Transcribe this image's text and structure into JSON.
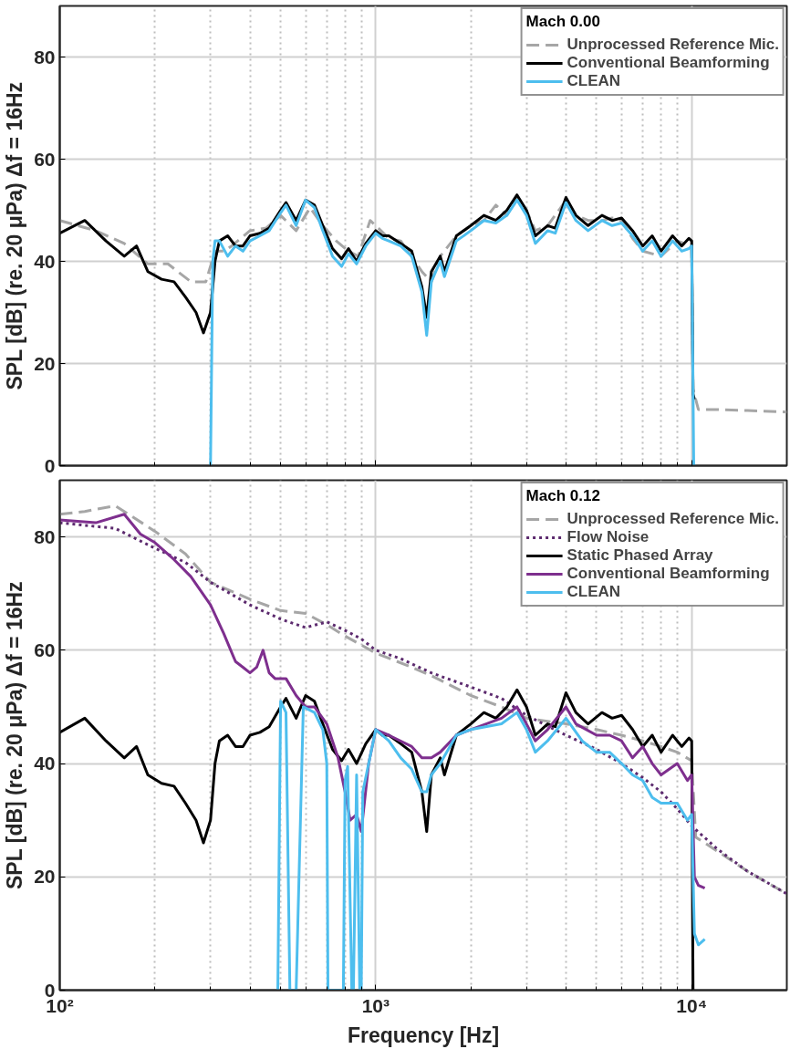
{
  "chart_data": [
    {
      "type": "line",
      "ylabel": "SPL [dB] (re. 20 μPa) Δf = 16Hz",
      "legend_title": "Mach 0.00",
      "legend": "top right",
      "grid": true,
      "log": "x",
      "tick_labels": "y",
      "xlim": [
        100,
        20000
      ],
      "ylim": [
        0,
        90
      ],
      "yticks": [
        0,
        20,
        40,
        60,
        80
      ],
      "xticks": [
        100,
        {
          "value": 200,
          "label": null
        },
        {
          "value": 300,
          "label": null
        },
        {
          "value": 400,
          "label": null
        },
        {
          "value": 500,
          "label": null
        },
        {
          "value": 600,
          "label": null
        },
        {
          "value": 700,
          "label": null
        },
        {
          "value": 800,
          "label": null
        },
        {
          "value": 900,
          "label": null
        },
        1000,
        {
          "value": 2000,
          "label": null
        },
        {
          "value": 3000,
          "label": null
        },
        {
          "value": 4000,
          "label": null
        },
        {
          "value": 5000,
          "label": null
        },
        {
          "value": 6000,
          "label": null
        },
        {
          "value": 7000,
          "label": null
        },
        {
          "value": 8000,
          "label": null
        },
        {
          "value": 9000,
          "label": null
        },
        10000
      ],
      "series": [
        {
          "name": "Unprocessed Reference Mic.",
          "color": "#a6a6a6",
          "line_style": "dashed",
          "x": [
            100,
            130,
            160,
            190,
            220,
            260,
            290,
            310,
            330,
            350,
            400,
            450,
            500,
            560,
            620,
            680,
            750,
            820,
            880,
            960,
            1000,
            1100,
            1200,
            1400,
            1500,
            1600,
            1800,
            2000,
            2200,
            2400,
            2600,
            2800,
            3000,
            3200,
            3500,
            3800,
            4000,
            4300,
            4700,
            5200,
            5600,
            6000,
            6500,
            7000,
            8000,
            9000,
            10000,
            10100,
            10500,
            12000,
            15000,
            20000
          ],
          "values": [
            48,
            46,
            43.5,
            39.5,
            39.5,
            36,
            36,
            42,
            42,
            43,
            46,
            46.5,
            49,
            46,
            50.5,
            47,
            44,
            42,
            41,
            48,
            47,
            44.5,
            44,
            38,
            36,
            41,
            45,
            47,
            48,
            51,
            49,
            52.5,
            50,
            46,
            47,
            50,
            52,
            49,
            48,
            48,
            48.5,
            48,
            44.5,
            42,
            41,
            44,
            43,
            15,
            11,
            11,
            10.8,
            10.5
          ]
        },
        {
          "name": "Conventional Beamforming",
          "color": "#000000",
          "line_style": "solid",
          "x": [
            100,
            120,
            140,
            160,
            175,
            190,
            210,
            230,
            250,
            270,
            285,
            300,
            310,
            320,
            340,
            360,
            380,
            400,
            430,
            460,
            500,
            520,
            560,
            600,
            640,
            680,
            730,
            780,
            820,
            870,
            930,
            1000,
            1050,
            1100,
            1200,
            1300,
            1400,
            1450,
            1500,
            1600,
            1650,
            1800,
            2000,
            2200,
            2400,
            2600,
            2800,
            3000,
            3200,
            3500,
            3700,
            4000,
            4300,
            4700,
            5200,
            5600,
            6000,
            6500,
            7000,
            7500,
            8000,
            8700,
            9300,
            9800,
            10000,
            10100,
            10200
          ],
          "values": [
            45.5,
            48,
            44,
            41,
            43,
            38,
            36.5,
            36,
            33,
            30,
            26,
            30,
            40,
            44,
            45,
            43,
            43,
            45,
            45.5,
            46.5,
            50,
            51.5,
            48,
            52,
            51,
            47,
            42.5,
            40.5,
            42.5,
            40,
            43.5,
            46,
            45,
            45,
            43.5,
            42,
            35,
            29,
            38,
            41,
            38,
            45,
            47,
            49,
            48,
            50,
            53,
            50,
            45,
            47,
            46.5,
            52.5,
            49,
            47,
            49,
            48,
            48.5,
            46,
            43,
            45,
            42,
            45,
            43,
            44.5,
            44,
            14,
            13
          ]
        },
        {
          "name": "CLEAN",
          "color": "#4dbeee",
          "line_style": "solid",
          "x": [
            300,
            305,
            310,
            320,
            340,
            360,
            380,
            400,
            430,
            460,
            500,
            520,
            560,
            600,
            640,
            680,
            730,
            780,
            820,
            870,
            930,
            1000,
            1050,
            1100,
            1200,
            1300,
            1400,
            1450,
            1500,
            1600,
            1650,
            1800,
            2000,
            2200,
            2400,
            2600,
            2800,
            3000,
            3200,
            3500,
            3700,
            4000,
            4300,
            4700,
            5200,
            5600,
            6000,
            6500,
            7000,
            7500,
            8000,
            8700,
            9300,
            9800,
            10000,
            10150,
            10300
          ],
          "values": [
            0,
            40,
            44,
            44,
            41,
            43,
            42,
            44,
            45,
            46,
            49.5,
            51,
            47,
            52,
            50.5,
            46,
            41,
            39,
            41.5,
            39.5,
            43,
            45.5,
            44.5,
            44,
            43,
            41,
            34,
            25.5,
            36,
            40,
            37,
            44,
            46,
            48,
            47.5,
            49,
            52,
            49,
            43.5,
            46,
            45.5,
            51.5,
            48,
            46,
            48,
            47,
            47.5,
            45,
            42,
            44,
            41,
            44,
            42,
            42.5,
            43,
            0,
            0
          ]
        }
      ]
    },
    {
      "type": "line",
      "xlabel": "Frequency [Hz]",
      "ylabel": "SPL [dB] (re. 20 μPa) Δf = 16Hz",
      "legend_title": "Mach 0.12",
      "legend": "top right",
      "grid": true,
      "log": "x",
      "xlim": [
        100,
        20000
      ],
      "ylim": [
        0,
        90
      ],
      "yticks": [
        0,
        20,
        40,
        60,
        80
      ],
      "xticks": [
        {
          "value": 100,
          "label": "10²"
        },
        {
          "value": 200,
          "label": null
        },
        {
          "value": 300,
          "label": null
        },
        {
          "value": 400,
          "label": null
        },
        {
          "value": 500,
          "label": null
        },
        {
          "value": 600,
          "label": null
        },
        {
          "value": 700,
          "label": null
        },
        {
          "value": 800,
          "label": null
        },
        {
          "value": 900,
          "label": null
        },
        {
          "value": 1000,
          "label": "10³"
        },
        {
          "value": 2000,
          "label": null
        },
        {
          "value": 3000,
          "label": null
        },
        {
          "value": 4000,
          "label": null
        },
        {
          "value": 5000,
          "label": null
        },
        {
          "value": 6000,
          "label": null
        },
        {
          "value": 7000,
          "label": null
        },
        {
          "value": 8000,
          "label": null
        },
        {
          "value": 9000,
          "label": null
        },
        {
          "value": 10000,
          "label": "10⁴"
        }
      ],
      "series": [
        {
          "name": "Unprocessed Reference Mic.",
          "color": "#a6a6a6",
          "line_style": "dashed",
          "x": [
            100,
            120,
            150,
            200,
            250,
            300,
            400,
            500,
            600,
            700,
            800,
            1000,
            1300,
            1500,
            2000,
            2500,
            3000,
            4000,
            5000,
            6000,
            7000,
            8000,
            9000,
            10000,
            10300,
            11000,
            15000,
            20000
          ],
          "values": [
            84,
            84.5,
            85.5,
            81,
            77,
            72,
            69,
            67,
            66.5,
            64.5,
            62.5,
            59.5,
            57,
            55.5,
            52,
            50,
            48,
            47,
            46,
            45,
            44,
            43,
            42,
            40.5,
            27,
            26,
            21,
            17
          ]
        },
        {
          "name": "Flow Noise",
          "color": "#5c2a6e",
          "line_style": "dotted",
          "x": [
            100,
            150,
            200,
            250,
            300,
            400,
            500,
            600,
            700,
            800,
            900,
            1000,
            1200,
            1500,
            2000,
            2500,
            3000,
            4000,
            5000,
            6000,
            7000,
            8000,
            9000,
            10000,
            12000,
            15000,
            20000
          ],
          "values": [
            82.5,
            81.5,
            78,
            75.5,
            72,
            68,
            65.5,
            64,
            65,
            63.5,
            62,
            60,
            58.5,
            56,
            53.5,
            51.5,
            48.5,
            45,
            42.5,
            40,
            37.5,
            35,
            32,
            29,
            25,
            21,
            17
          ]
        },
        {
          "name": "Static Phased Array",
          "color": "#000000",
          "line_style": "solid",
          "x": [
            100,
            120,
            140,
            160,
            175,
            190,
            210,
            230,
            250,
            270,
            285,
            300,
            310,
            320,
            340,
            360,
            380,
            400,
            430,
            460,
            500,
            520,
            560,
            600,
            640,
            680,
            730,
            780,
            820,
            870,
            930,
            1000,
            1050,
            1100,
            1200,
            1300,
            1400,
            1450,
            1500,
            1600,
            1650,
            1800,
            2000,
            2200,
            2400,
            2600,
            2800,
            3000,
            3200,
            3500,
            3700,
            4000,
            4300,
            4700,
            5200,
            5600,
            6000,
            6500,
            7000,
            7500,
            8000,
            8700,
            9300,
            9800,
            10000,
            10100,
            10200
          ],
          "values": [
            45.5,
            48,
            44,
            41,
            43,
            38,
            36.5,
            36,
            33,
            30,
            26,
            30,
            40,
            44,
            45,
            43,
            43,
            45,
            45.5,
            46.5,
            50,
            51.5,
            48,
            52,
            51,
            47,
            42.5,
            40.5,
            42.5,
            40,
            43.5,
            46,
            45,
            45,
            43.5,
            42,
            35,
            28,
            38,
            41,
            38,
            45,
            47,
            49,
            48,
            50,
            53,
            50,
            45,
            47,
            46.5,
            52.5,
            49,
            47,
            49,
            48,
            48.5,
            46,
            43,
            45,
            42,
            45,
            43,
            44.5,
            44,
            0,
            0
          ]
        },
        {
          "name": "Conventional Beamforming",
          "color": "#7e2f8e",
          "line_style": "solid",
          "x": [
            100,
            130,
            160,
            180,
            200,
            230,
            260,
            300,
            330,
            360,
            380,
            400,
            420,
            440,
            460,
            480,
            520,
            560,
            600,
            640,
            700,
            760,
            800,
            830,
            870,
            900,
            950,
            1000,
            1100,
            1300,
            1400,
            1500,
            1600,
            1800,
            2000,
            2500,
            2800,
            3000,
            3200,
            3500,
            4000,
            4300,
            5000,
            5500,
            6000,
            6500,
            7000,
            7500,
            8000,
            9000,
            9700,
            10000,
            10200,
            10500,
            11000
          ],
          "values": [
            83,
            82.5,
            84,
            80.5,
            79,
            76,
            73,
            68,
            63,
            58,
            57,
            56,
            57,
            60,
            56,
            55,
            55,
            52,
            50,
            50,
            47,
            41,
            35,
            30,
            31,
            28,
            40,
            46,
            45,
            43,
            41,
            41,
            42,
            45,
            46,
            48,
            50,
            47,
            44,
            46,
            50,
            47,
            45,
            45,
            44,
            41,
            43,
            40,
            38,
            40,
            37,
            38,
            20,
            18.5,
            18
          ]
        },
        {
          "name": "CLEAN",
          "color": "#4dbeee",
          "line_style": "solid",
          "x": [
            490,
            500,
            520,
            535,
            560,
            590,
            640,
            680,
            700,
            706,
            790,
            800,
            815,
            840,
            850,
            870,
            890,
            900,
            910,
            950,
            1000,
            1100,
            1200,
            1300,
            1400,
            1450,
            1500,
            1600,
            1800,
            2000,
            2500,
            2800,
            3000,
            3200,
            3500,
            4000,
            4500,
            5000,
            5500,
            6000,
            6500,
            7000,
            7500,
            8000,
            9000,
            9700,
            10000,
            10200,
            10500,
            11000
          ],
          "values": [
            0,
            51,
            49,
            0,
            0,
            50,
            49,
            46,
            40,
            0,
            0,
            37,
            39.5,
            0,
            0,
            38,
            0,
            0,
            35,
            40,
            46,
            44,
            41,
            39,
            35,
            35,
            38,
            40,
            45,
            46,
            47,
            49,
            46,
            42,
            44,
            48,
            44,
            42,
            42,
            40,
            38,
            37,
            34,
            33,
            33,
            30,
            31,
            10,
            8,
            9
          ]
        }
      ]
    }
  ]
}
